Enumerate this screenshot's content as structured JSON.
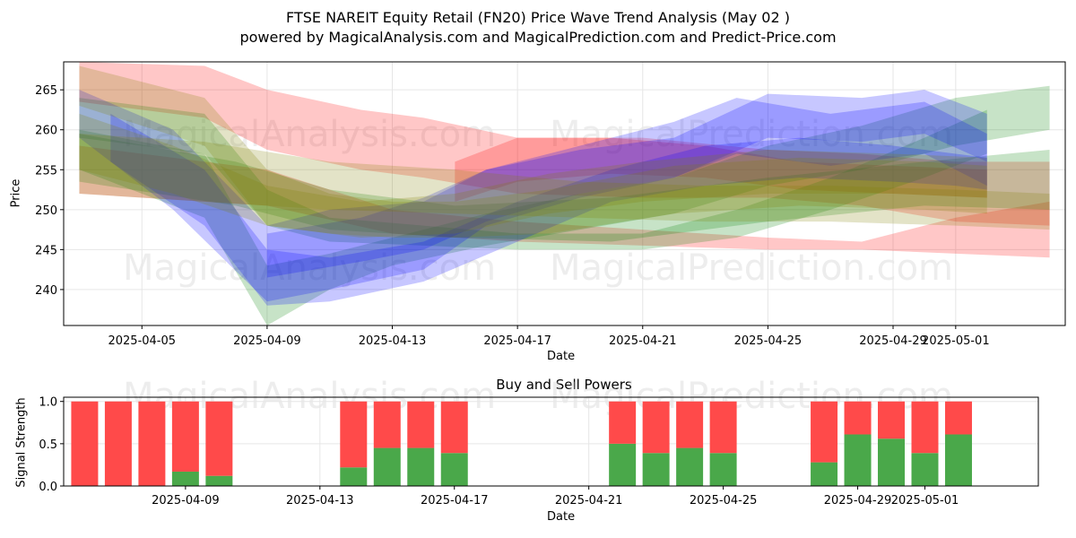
{
  "figure": {
    "title": "FTSE NAREIT Equity Retail (FN20) Price Wave Trend Analysis (May 02 )",
    "subtitle": "powered by MagicalAnalysis.com and MagicalPrediction.com and Predict-Price.com",
    "watermarks": [
      "MagicalAnalysis.com",
      "MagicalPrediction.com"
    ]
  },
  "chart_data": [
    {
      "type": "area",
      "title": "",
      "xlabel": "Date",
      "ylabel": "Price",
      "x_range": [
        "2025-04-02T12:00",
        "2025-05-04T12:00"
      ],
      "ylim": [
        235.5,
        268.5
      ],
      "x_ticks": [
        "2025-04-05",
        "2025-04-09",
        "2025-04-13",
        "2025-04-17",
        "2025-04-21",
        "2025-04-25",
        "2025-04-29",
        "2025-05-01"
      ],
      "y_ticks": [
        240,
        245,
        250,
        255,
        260,
        265
      ],
      "grid": true,
      "series": [
        {
          "color": "#ff0000",
          "x": [
            "2025-04-03",
            "2025-04-07",
            "2025-04-09",
            "2025-04-12",
            "2025-04-14",
            "2025-04-17",
            "2025-04-21",
            "2025-04-25",
            "2025-04-28",
            "2025-05-01",
            "2025-05-04"
          ],
          "upper": [
            268.5,
            268,
            265,
            262.5,
            261.5,
            259,
            259,
            257.5,
            257,
            256,
            256
          ],
          "lower": [
            263.5,
            261.5,
            257.5,
            255,
            254,
            252,
            251.5,
            251.5,
            250.5,
            248.5,
            248
          ]
        },
        {
          "color": "#ff0000",
          "x": [
            "2025-04-03",
            "2025-04-09",
            "2025-04-13",
            "2025-04-17",
            "2025-04-21",
            "2025-04-25",
            "2025-04-28",
            "2025-05-01",
            "2025-05-04"
          ],
          "upper": [
            258,
            255,
            250,
            248.5,
            247.5,
            246.5,
            246,
            249,
            251
          ],
          "lower": [
            252,
            250.5,
            247,
            246,
            245.5,
            245,
            245,
            244.5,
            244
          ]
        },
        {
          "color": "#ff0000",
          "x": [
            "2025-04-15",
            "2025-04-17",
            "2025-04-20",
            "2025-04-23",
            "2025-04-26",
            "2025-04-29",
            "2025-05-02"
          ],
          "upper": [
            256,
            259,
            259,
            258,
            256,
            255.5,
            255
          ],
          "lower": [
            251,
            253.5,
            254.5,
            254,
            252.5,
            252,
            251.5
          ]
        },
        {
          "color": "#008000",
          "x": [
            "2025-04-03",
            "2025-04-07",
            "2025-04-09",
            "2025-04-11",
            "2025-04-14",
            "2025-04-17",
            "2025-04-21",
            "2025-04-24",
            "2025-04-27",
            "2025-04-30",
            "2025-05-02"
          ],
          "upper": [
            264,
            262,
            252.5,
            249,
            248,
            247,
            247,
            250,
            254,
            259,
            262.5
          ],
          "lower": [
            259,
            257,
            248,
            246,
            245.5,
            245,
            245,
            246.5,
            250,
            254,
            257
          ]
        },
        {
          "color": "#008000",
          "x": [
            "2025-04-03",
            "2025-04-07",
            "2025-04-09",
            "2025-04-11",
            "2025-04-13",
            "2025-04-16",
            "2025-04-19",
            "2025-04-22",
            "2025-04-25",
            "2025-04-28",
            "2025-05-01",
            "2025-05-04"
          ],
          "upper": [
            260,
            257,
            243,
            244.5,
            246.5,
            249.5,
            252,
            254,
            258,
            260.5,
            264,
            265.5
          ],
          "lower": [
            255,
            249,
            235.5,
            240,
            243,
            245.5,
            247.5,
            249.5,
            253,
            255,
            258,
            260
          ]
        },
        {
          "color": "#008000",
          "x": [
            "2025-04-03",
            "2025-04-08",
            "2025-04-11",
            "2025-04-15",
            "2025-04-20",
            "2025-04-25",
            "2025-04-30",
            "2025-05-04"
          ],
          "upper": [
            259.5,
            256,
            252.5,
            250.5,
            251.5,
            254,
            256,
            257.5
          ],
          "lower": [
            253.5,
            250.5,
            247.5,
            246.5,
            246,
            248.5,
            250.5,
            250
          ]
        },
        {
          "color": "#0000ff",
          "x": [
            "2025-04-03",
            "2025-04-06",
            "2025-04-09",
            "2025-04-11",
            "2025-04-14",
            "2025-04-16",
            "2025-04-19",
            "2025-04-22",
            "2025-04-24",
            "2025-04-27",
            "2025-04-30",
            "2025-05-02"
          ],
          "upper": [
            265,
            260,
            248,
            250,
            251,
            255,
            258,
            261,
            264,
            262,
            263.5,
            259.5
          ],
          "lower": [
            259,
            250,
            238.5,
            240,
            242.5,
            248,
            251.5,
            254,
            257,
            255.5,
            257,
            253
          ]
        },
        {
          "color": "#0000ff",
          "x": [
            "2025-04-04",
            "2025-04-07",
            "2025-04-09",
            "2025-04-11",
            "2025-04-14",
            "2025-04-17",
            "2025-04-20",
            "2025-04-23",
            "2025-04-26",
            "2025-04-29",
            "2025-05-01",
            "2025-05-02"
          ],
          "upper": [
            262,
            255,
            245,
            244,
            246,
            251,
            255,
            258,
            259,
            258,
            257,
            256.5
          ],
          "lower": [
            256,
            248,
            238,
            238.5,
            241,
            246,
            251,
            253,
            254,
            253.5,
            253,
            252.5
          ]
        },
        {
          "color": "#0000ff",
          "x": [
            "2025-04-09",
            "2025-04-12",
            "2025-04-14",
            "2025-04-16",
            "2025-04-19",
            "2025-04-22",
            "2025-04-25",
            "2025-04-28",
            "2025-04-30",
            "2025-05-02"
          ],
          "upper": [
            247,
            249,
            251.5,
            255,
            257.5,
            259,
            264.5,
            264,
            265,
            262
          ],
          "lower": [
            241.5,
            243.5,
            245,
            248.5,
            252,
            254,
            259,
            258.5,
            259.5,
            256
          ]
        },
        {
          "color": "#808000",
          "x": [
            "2025-04-03",
            "2025-04-07",
            "2025-04-09",
            "2025-04-11",
            "2025-04-13",
            "2025-04-15",
            "2025-04-18",
            "2025-04-22",
            "2025-04-26",
            "2025-04-30",
            "2025-05-02"
          ],
          "upper": [
            268,
            264,
            255,
            252,
            251,
            251,
            252.5,
            255.5,
            256.5,
            256,
            255.5
          ],
          "lower": [
            263,
            258,
            248,
            247,
            246.5,
            246.5,
            247,
            249.5,
            250.5,
            250,
            249.5
          ]
        },
        {
          "color": "#808000",
          "x": [
            "2025-04-03",
            "2025-04-07",
            "2025-04-11",
            "2025-04-15",
            "2025-04-19",
            "2025-04-23",
            "2025-04-27",
            "2025-05-01",
            "2025-05-04"
          ],
          "upper": [
            259.5,
            258.5,
            256,
            255,
            253.5,
            253,
            253,
            252.5,
            252
          ],
          "lower": [
            252,
            251,
            250,
            249.5,
            249,
            248.5,
            248.5,
            248,
            247.5
          ]
        },
        {
          "color": "#808000",
          "x": [
            "2025-04-03",
            "2025-04-06",
            "2025-04-09",
            "2025-04-12",
            "2025-04-15",
            "2025-04-18",
            "2025-04-21",
            "2025-04-25",
            "2025-04-29",
            "2025-05-02"
          ],
          "upper": [
            262,
            258,
            253,
            251,
            252,
            254.5,
            256,
            257.5,
            257,
            256.5
          ],
          "lower": [
            255,
            252,
            248,
            246.5,
            247,
            249.5,
            251,
            252,
            252,
            251.5
          ]
        }
      ]
    },
    {
      "type": "bar",
      "title": "Buy and Sell Powers",
      "xlabel": "Date",
      "ylabel": "Signal Strength",
      "x_range": [
        "2025-04-05T09:00",
        "2025-05-04T09:00"
      ],
      "ylim": [
        0,
        1.05
      ],
      "x_ticks": [
        "2025-04-09",
        "2025-04-13",
        "2025-04-17",
        "2025-04-21",
        "2025-04-25",
        "2025-04-29",
        "2025-05-01"
      ],
      "y_ticks": [
        "0.0",
        "0.5",
        "1.0"
      ],
      "grid": true,
      "categories": [
        "2025-04-06",
        "2025-04-07",
        "2025-04-08",
        "2025-04-09",
        "2025-04-10",
        "2025-04-14",
        "2025-04-15",
        "2025-04-16",
        "2025-04-17",
        "2025-04-22",
        "2025-04-23",
        "2025-04-24",
        "2025-04-25",
        "2025-04-28",
        "2025-04-29",
        "2025-04-30",
        "2025-05-01",
        "2025-05-02"
      ],
      "series": [
        {
          "name": "Buy",
          "color": "#4aa84a",
          "values": [
            0,
            0,
            0,
            0.17,
            0.12,
            0.22,
            0.45,
            0.45,
            0.39,
            0.5,
            0.39,
            0.45,
            0.39,
            0.28,
            0.61,
            0.56,
            0.39,
            0.61
          ]
        },
        {
          "name": "Sell",
          "color": "#ff4a4a",
          "values": [
            1,
            1,
            1,
            0.83,
            0.88,
            0.78,
            0.55,
            0.55,
            0.61,
            0.5,
            0.61,
            0.55,
            0.61,
            0.72,
            0.39,
            0.44,
            0.61,
            0.39
          ]
        }
      ]
    }
  ]
}
